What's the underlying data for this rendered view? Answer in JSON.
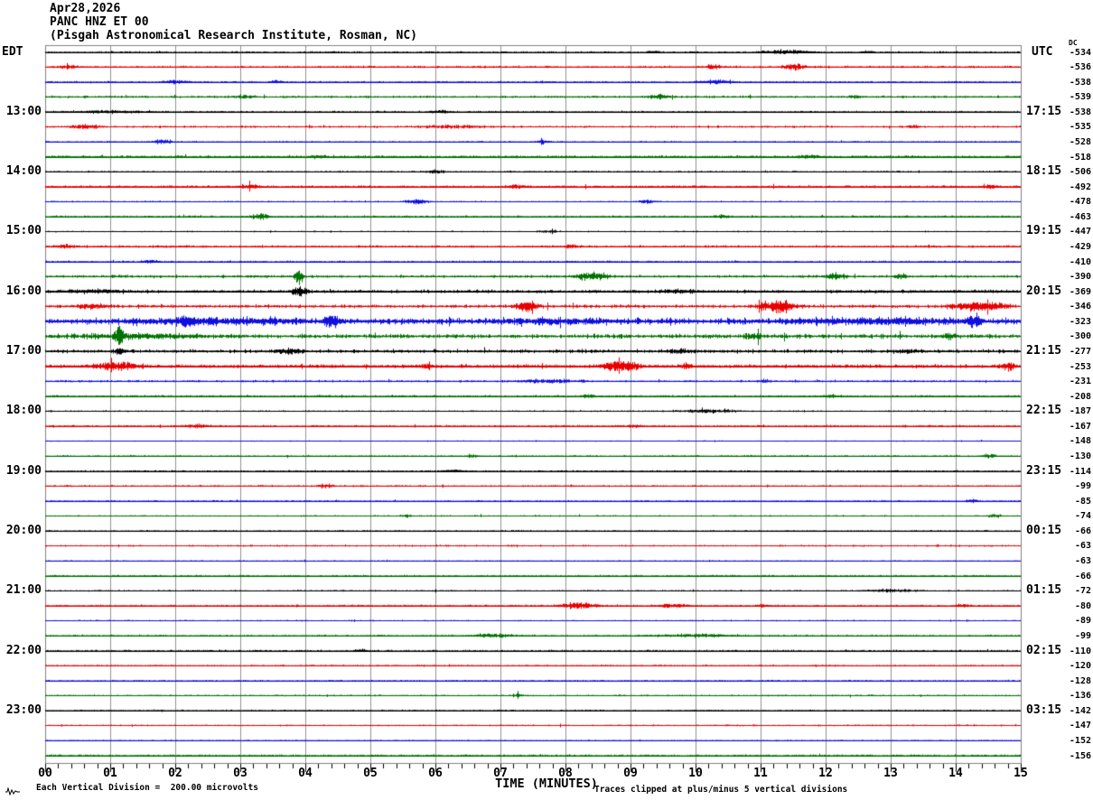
{
  "title": {
    "date": "Apr28,2026",
    "station": "PANC HNZ ET 00",
    "institution": "(Pisgah Astronomical Research Institute, Rosman, NC)"
  },
  "axes": {
    "left_tz": "EDT",
    "right_tz": "UTC",
    "dc_header": "DC",
    "x_label": "TIME (MINUTES)",
    "x_ticks": [
      "00",
      "01",
      "02",
      "03",
      "04",
      "05",
      "06",
      "07",
      "08",
      "09",
      "10",
      "11",
      "12",
      "13",
      "14",
      "15"
    ],
    "footer_left": "Each Vertical Division =  200.00 microvolts",
    "footer_right": "Traces clipped at plus/minus 5 vertical divisions"
  },
  "chart_data": {
    "type": "line",
    "kind": "helicorder-seismogram",
    "x_range_minutes": [
      0,
      15
    ],
    "minutes_per_row": 15,
    "grid": true,
    "grid_color": "#909090",
    "frame_color": "#808080",
    "row_color_cycle": [
      "#000000",
      "#e80000",
      "#0f0fe0",
      "#007200"
    ],
    "rows": [
      {
        "color": 0,
        "dc": -534,
        "left": null,
        "right": null,
        "amp": 0.7,
        "bursts": [
          [
            9.2,
            9.5,
            1.5
          ],
          [
            10.8,
            12.0,
            2.2
          ],
          [
            12.5,
            12.8,
            1.5
          ]
        ]
      },
      {
        "color": 1,
        "dc": -536,
        "left": null,
        "right": null,
        "amp": 1.2,
        "bursts": [
          [
            0.1,
            0.6,
            1.5
          ],
          [
            10.1,
            10.5,
            2.5
          ],
          [
            11.2,
            11.8,
            3.0
          ]
        ]
      },
      {
        "color": 2,
        "dc": -538,
        "left": null,
        "right": null,
        "amp": 0.8,
        "bursts": [
          [
            1.7,
            2.3,
            2.2
          ],
          [
            3.4,
            3.7,
            1.5
          ],
          [
            9.9,
            10.7,
            1.8
          ]
        ]
      },
      {
        "color": 3,
        "dc": -539,
        "left": null,
        "right": null,
        "amp": 1.3,
        "bursts": [
          [
            2.8,
            3.3,
            1.8
          ],
          [
            9.2,
            9.7,
            2.5
          ],
          [
            12.3,
            12.6,
            1.8
          ]
        ]
      },
      {
        "color": 0,
        "dc": -538,
        "left": "13:00",
        "right": "17:15",
        "amp": 1.0,
        "bursts": [
          [
            0.0,
            2.0,
            1.2
          ],
          [
            5.8,
            6.3,
            1.5
          ]
        ]
      },
      {
        "color": 1,
        "dc": -535,
        "left": null,
        "right": null,
        "amp": 1.2,
        "bursts": [
          [
            0.2,
            1.0,
            2.0
          ],
          [
            5.5,
            7.0,
            1.5
          ],
          [
            13.2,
            13.5,
            1.8
          ]
        ]
      },
      {
        "color": 2,
        "dc": -528,
        "left": null,
        "right": null,
        "amp": 0.8,
        "bursts": [
          [
            1.6,
            2.0,
            2.8
          ],
          [
            7.5,
            7.8,
            2.0
          ]
        ]
      },
      {
        "color": 3,
        "dc": -518,
        "left": null,
        "right": null,
        "amp": 1.4,
        "bursts": [
          [
            4.0,
            4.4,
            1.6
          ],
          [
            11.5,
            12.0,
            1.6
          ]
        ]
      },
      {
        "color": 0,
        "dc": -506,
        "left": "14:00",
        "right": "18:15",
        "amp": 1.0,
        "bursts": [
          [
            5.8,
            6.2,
            1.8
          ]
        ]
      },
      {
        "color": 1,
        "dc": -492,
        "left": null,
        "right": null,
        "amp": 1.3,
        "bursts": [
          [
            2.9,
            3.4,
            2.2
          ],
          [
            7.0,
            7.5,
            1.8
          ],
          [
            14.3,
            14.7,
            2.2
          ]
        ]
      },
      {
        "color": 2,
        "dc": -478,
        "left": null,
        "right": null,
        "amp": 0.8,
        "bursts": [
          [
            5.4,
            6.0,
            2.5
          ],
          [
            9.0,
            9.5,
            1.8
          ]
        ]
      },
      {
        "color": 3,
        "dc": -463,
        "left": null,
        "right": null,
        "amp": 1.2,
        "bursts": [
          [
            3.1,
            3.5,
            3.5
          ],
          [
            10.2,
            10.6,
            1.8
          ]
        ]
      },
      {
        "color": 0,
        "dc": -447,
        "left": "15:00",
        "right": "19:15",
        "amp": 0.8,
        "bursts": [
          [
            7.5,
            8.0,
            1.3
          ]
        ]
      },
      {
        "color": 1,
        "dc": -429,
        "left": null,
        "right": null,
        "amp": 1.3,
        "bursts": [
          [
            0.0,
            0.6,
            1.8
          ],
          [
            7.9,
            8.3,
            1.8
          ]
        ]
      },
      {
        "color": 2,
        "dc": -410,
        "left": null,
        "right": null,
        "amp": 0.8,
        "bursts": [
          [
            1.4,
            1.8,
            1.8
          ]
        ]
      },
      {
        "color": 3,
        "dc": -390,
        "left": null,
        "right": null,
        "amp": 1.6,
        "bursts": [
          [
            3.8,
            4.0,
            10.0
          ],
          [
            8.0,
            8.8,
            4.5
          ],
          [
            11.9,
            12.4,
            2.8
          ],
          [
            13.0,
            13.3,
            2.5
          ]
        ]
      },
      {
        "color": 0,
        "dc": -369,
        "left": "16:00",
        "right": "20:15",
        "amp": 1.8,
        "bursts": [
          [
            0.0,
            1.5,
            1.5
          ],
          [
            3.7,
            4.1,
            5.0
          ],
          [
            9.3,
            10.2,
            1.8
          ]
        ]
      },
      {
        "color": 1,
        "dc": -346,
        "left": null,
        "right": null,
        "amp": 2.0,
        "bursts": [
          [
            0.4,
            1.1,
            2.5
          ],
          [
            7.1,
            7.7,
            5.0
          ],
          [
            10.8,
            11.7,
            6.5
          ],
          [
            13.7,
            15.0,
            5.0
          ]
        ]
      },
      {
        "color": 2,
        "dc": -323,
        "left": null,
        "right": null,
        "amp": 3.5,
        "bursts": [
          [
            0.3,
            5.0,
            2.0
          ],
          [
            2.0,
            2.3,
            5.0
          ],
          [
            4.2,
            4.6,
            5.0
          ],
          [
            6.3,
            9.3,
            2.0
          ],
          [
            10.5,
            15.0,
            2.0
          ],
          [
            14.1,
            14.5,
            5.0
          ]
        ]
      },
      {
        "color": 3,
        "dc": -300,
        "left": null,
        "right": null,
        "amp": 2.5,
        "bursts": [
          [
            0.0,
            3.0,
            1.8
          ],
          [
            1.0,
            1.25,
            7.5
          ],
          [
            10.7,
            11.1,
            2.5
          ],
          [
            13.7,
            14.1,
            2.5
          ]
        ]
      },
      {
        "color": 0,
        "dc": -277,
        "left": "17:00",
        "right": "21:15",
        "amp": 2.0,
        "bursts": [
          [
            1.0,
            1.3,
            2.5
          ],
          [
            3.4,
            4.1,
            2.5
          ],
          [
            9.4,
            10.1,
            2.0
          ],
          [
            12.8,
            13.6,
            1.5
          ]
        ]
      },
      {
        "color": 1,
        "dc": -253,
        "left": null,
        "right": null,
        "amp": 2.0,
        "bursts": [
          [
            0.5,
            1.7,
            3.5
          ],
          [
            5.7,
            6.0,
            2.0
          ],
          [
            8.4,
            9.3,
            6.5
          ],
          [
            9.7,
            10.0,
            3.0
          ],
          [
            14.6,
            15.0,
            3.5
          ]
        ]
      },
      {
        "color": 2,
        "dc": -231,
        "left": null,
        "right": null,
        "amp": 1.2,
        "bursts": [
          [
            6.9,
            8.6,
            1.8
          ],
          [
            10.9,
            11.2,
            1.8
          ]
        ]
      },
      {
        "color": 3,
        "dc": -208,
        "left": null,
        "right": null,
        "amp": 1.2,
        "bursts": [
          [
            8.2,
            8.5,
            1.5
          ],
          [
            11.9,
            12.2,
            1.5
          ]
        ]
      },
      {
        "color": 0,
        "dc": -187,
        "left": "18:00",
        "right": "22:15",
        "amp": 0.9,
        "bursts": [
          [
            9.4,
            11.0,
            1.5
          ]
        ]
      },
      {
        "color": 1,
        "dc": -167,
        "left": null,
        "right": null,
        "amp": 1.2,
        "bursts": [
          [
            2.0,
            2.6,
            1.8
          ],
          [
            8.9,
            9.2,
            1.5
          ]
        ]
      },
      {
        "color": 2,
        "dc": -148,
        "left": null,
        "right": null,
        "amp": 0.7,
        "bursts": []
      },
      {
        "color": 3,
        "dc": -130,
        "left": null,
        "right": null,
        "amp": 1.0,
        "bursts": [
          [
            6.4,
            6.7,
            1.5
          ],
          [
            14.3,
            14.7,
            1.8
          ]
        ]
      },
      {
        "color": 0,
        "dc": -114,
        "left": "19:00",
        "right": "23:15",
        "amp": 0.8,
        "bursts": [
          [
            6.0,
            6.5,
            1.5
          ]
        ]
      },
      {
        "color": 1,
        "dc": -99,
        "left": null,
        "right": null,
        "amp": 1.0,
        "bursts": [
          [
            4.1,
            4.5,
            2.2
          ]
        ]
      },
      {
        "color": 2,
        "dc": -85,
        "left": null,
        "right": null,
        "amp": 0.7,
        "bursts": [
          [
            14.1,
            14.4,
            1.8
          ]
        ]
      },
      {
        "color": 3,
        "dc": -74,
        "left": null,
        "right": null,
        "amp": 0.9,
        "bursts": [
          [
            5.4,
            5.7,
            1.4
          ],
          [
            14.4,
            14.8,
            1.5
          ]
        ]
      },
      {
        "color": 0,
        "dc": -66,
        "left": "20:00",
        "right": "00:15",
        "amp": 0.8,
        "bursts": []
      },
      {
        "color": 1,
        "dc": -63,
        "left": null,
        "right": null,
        "amp": 1.0,
        "bursts": []
      },
      {
        "color": 2,
        "dc": -63,
        "left": null,
        "right": null,
        "amp": 0.6,
        "bursts": []
      },
      {
        "color": 3,
        "dc": -66,
        "left": null,
        "right": null,
        "amp": 0.9,
        "bursts": []
      },
      {
        "color": 0,
        "dc": -72,
        "left": "21:00",
        "right": "01:15",
        "amp": 0.9,
        "bursts": [
          [
            12.4,
            13.6,
            1.4
          ]
        ]
      },
      {
        "color": 1,
        "dc": -80,
        "left": null,
        "right": null,
        "amp": 1.0,
        "bursts": [
          [
            7.7,
            8.7,
            2.8
          ],
          [
            9.3,
            10.0,
            2.0
          ],
          [
            10.9,
            11.2,
            1.6
          ],
          [
            13.9,
            14.3,
            1.6
          ]
        ]
      },
      {
        "color": 2,
        "dc": -89,
        "left": null,
        "right": null,
        "amp": 0.8,
        "bursts": []
      },
      {
        "color": 3,
        "dc": -99,
        "left": null,
        "right": null,
        "amp": 1.0,
        "bursts": [
          [
            6.3,
            7.5,
            1.6
          ],
          [
            9.0,
            11.0,
            1.4
          ]
        ]
      },
      {
        "color": 0,
        "dc": -110,
        "left": "22:00",
        "right": "02:15",
        "amp": 0.8,
        "bursts": [
          [
            4.7,
            5.0,
            1.5
          ]
        ]
      },
      {
        "color": 1,
        "dc": -120,
        "left": null,
        "right": null,
        "amp": 0.9,
        "bursts": []
      },
      {
        "color": 2,
        "dc": -128,
        "left": null,
        "right": null,
        "amp": 0.6,
        "bursts": []
      },
      {
        "color": 3,
        "dc": -136,
        "left": null,
        "right": null,
        "amp": 0.9,
        "bursts": [
          [
            7.1,
            7.4,
            1.4
          ]
        ]
      },
      {
        "color": 0,
        "dc": -142,
        "left": "23:00",
        "right": "03:15",
        "amp": 0.8,
        "bursts": []
      },
      {
        "color": 1,
        "dc": -147,
        "left": null,
        "right": null,
        "amp": 0.9,
        "bursts": []
      },
      {
        "color": 2,
        "dc": -152,
        "left": null,
        "right": null,
        "amp": 0.6,
        "bursts": []
      },
      {
        "color": 3,
        "dc": -156,
        "left": null,
        "right": null,
        "amp": 0.9,
        "bursts": []
      }
    ]
  }
}
